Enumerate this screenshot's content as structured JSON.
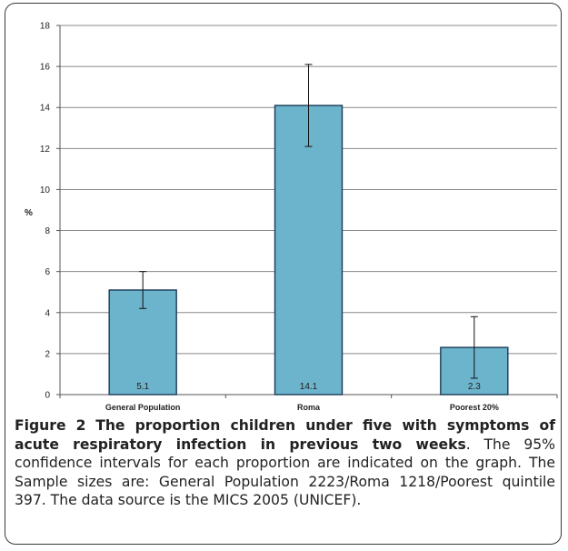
{
  "chart_data": {
    "type": "bar",
    "categories": [
      "General Population",
      "Roma",
      "Poorest 20%"
    ],
    "values": [
      5.1,
      14.1,
      2.3
    ],
    "ci_low": [
      4.2,
      12.1,
      0.8
    ],
    "ci_high": [
      6.0,
      16.1,
      3.8
    ],
    "data_labels": [
      "5.1",
      "14.1",
      "2.3"
    ],
    "ylabel": "%",
    "xlabel": "",
    "ylim": [
      0,
      18
    ],
    "yticks": [
      0,
      2,
      4,
      6,
      8,
      10,
      12,
      14,
      16,
      18
    ],
    "grid": true,
    "bar_color": "#6cb3cc",
    "bar_edge_color": "#1b3b57"
  },
  "caption": {
    "label": "Figure 2",
    "title": "The proportion children under five with symptoms of acute respiratory infection in previous two weeks",
    "body": ". The 95% confidence intervals for each proportion are indicated on the graph. The Sample sizes are: General Population 2223/Roma 1218/Poorest quintile 397. The data source is the MICS 2005 (UNICEF)."
  }
}
